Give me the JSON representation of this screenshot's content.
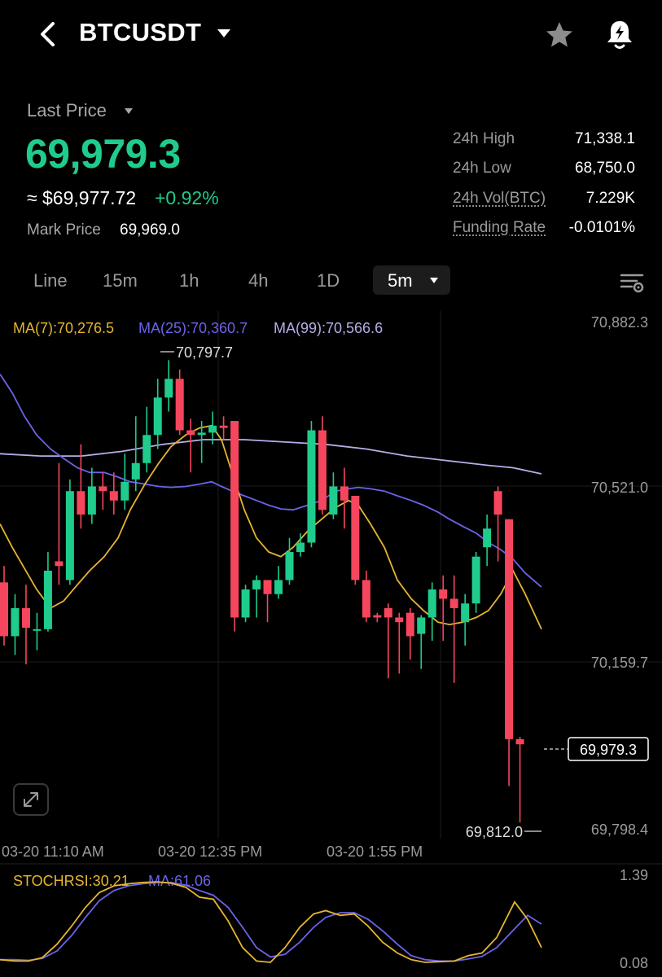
{
  "header": {
    "symbol": "BTCUSDT",
    "icons": [
      "chevron-left-icon",
      "caret-down-icon",
      "star-icon",
      "price-alert-bell-icon"
    ]
  },
  "price": {
    "label": "Last Price",
    "last": "69,979.3",
    "approx": "≈ $69,977.72",
    "change": "+0.92%",
    "mark_label": "Mark Price",
    "mark_value": "69,969.0",
    "colors": {
      "up": "#1fcc8c",
      "down": "#f6465d"
    }
  },
  "stats": [
    {
      "label": "24h High",
      "value": "71,338.1"
    },
    {
      "label": "24h Low",
      "value": "68,750.0"
    },
    {
      "label": "24h Vol(BTC)",
      "value": "7.229K"
    },
    {
      "label": "Funding Rate",
      "value": "-0.0101%"
    }
  ],
  "timeframes": {
    "tabs": [
      "Line",
      "15m",
      "1h",
      "4h",
      "1D"
    ],
    "selected": "5m"
  },
  "chart_data": {
    "type": "candlestick",
    "ma_labels": [
      {
        "text": "MA(7):70,276.5",
        "color": "#e6b52e"
      },
      {
        "text": "MA(25):70,360.7",
        "color": "#6b63e8"
      },
      {
        "text": "MA(99):70,566.6",
        "color": "#b5aee8"
      }
    ],
    "y_ticks": [
      "70,882.3",
      "70,521.0",
      "70,159.7",
      "69,798.4"
    ],
    "ylim": [
      69798.4,
      70882.3
    ],
    "x_ticks": [
      "03-20 11:10 AM",
      "03-20 12:35 PM",
      "03-20 1:55 PM"
    ],
    "high_annotation": "70,797.7",
    "low_annotation": "69,812.0",
    "current_price_tag": "69,979.3",
    "candles": [
      [
        70325,
        70210,
        70360,
        70190
      ],
      [
        70210,
        70270,
        70300,
        70170
      ],
      [
        70270,
        70228,
        70320,
        70150
      ],
      [
        70225,
        70225,
        70260,
        70180
      ],
      [
        70225,
        70350,
        70390,
        70220
      ],
      [
        70370,
        70360,
        70580,
        70320
      ],
      [
        70330,
        70520,
        70545,
        70320
      ],
      [
        70520,
        70470,
        70620,
        70440
      ],
      [
        70470,
        70530,
        70570,
        70450
      ],
      [
        70530,
        70520,
        70560,
        70480
      ],
      [
        70520,
        70500,
        70560,
        70470
      ],
      [
        70500,
        70540,
        70600,
        70480
      ],
      [
        70545,
        70580,
        70680,
        70520
      ],
      [
        70580,
        70640,
        70700,
        70560
      ],
      [
        70640,
        70720,
        70760,
        70610
      ],
      [
        70720,
        70760,
        70800,
        70690
      ],
      [
        70760,
        70650,
        70780,
        70640
      ],
      [
        70650,
        70640,
        70675,
        70560
      ],
      [
        70640,
        70645,
        70670,
        70580
      ],
      [
        70645,
        70660,
        70690,
        70620
      ],
      [
        70660,
        70655,
        70680,
        70630
      ],
      [
        70670,
        70250,
        70670,
        70220
      ],
      [
        70250,
        70310,
        70320,
        70240
      ],
      [
        70310,
        70330,
        70340,
        70250
      ],
      [
        70330,
        70300,
        70330,
        70240
      ],
      [
        70300,
        70330,
        70360,
        70290
      ],
      [
        70330,
        70390,
        70420,
        70320
      ],
      [
        70390,
        70410,
        70430,
        70380
      ],
      [
        70410,
        70650,
        70670,
        70400
      ],
      [
        70650,
        70480,
        70680,
        70470
      ],
      [
        70470,
        70530,
        70560,
        70460
      ],
      [
        70530,
        70500,
        70570,
        70440
      ],
      [
        70510,
        70330,
        70510,
        70320
      ],
      [
        70330,
        70250,
        70350,
        70240
      ],
      [
        70255,
        70250,
        70260,
        70240
      ],
      [
        70270,
        70250,
        70280,
        70120
      ],
      [
        70250,
        70240,
        70260,
        70130
      ],
      [
        70260,
        70210,
        70270,
        70160
      ],
      [
        70215,
        70250,
        70255,
        70140
      ],
      [
        70250,
        70310,
        70325,
        70200
      ],
      [
        70310,
        70290,
        70340,
        70200
      ],
      [
        70290,
        70270,
        70340,
        70110
      ],
      [
        70240,
        70280,
        70300,
        70190
      ],
      [
        70280,
        70380,
        70390,
        70260
      ],
      [
        70400,
        70440,
        70470,
        70360
      ],
      [
        70520,
        70470,
        70530,
        70370
      ],
      [
        70460,
        69990,
        70460,
        69890
      ],
      [
        69990,
        69979,
        69995,
        69812
      ]
    ],
    "ma7": [
      [
        0,
        70450
      ],
      [
        15,
        70400
      ],
      [
        30,
        70355
      ],
      [
        45,
        70310
      ],
      [
        62,
        70270
      ],
      [
        78,
        70285
      ],
      [
        95,
        70320
      ],
      [
        110,
        70350
      ],
      [
        128,
        70380
      ],
      [
        145,
        70420
      ],
      [
        160,
        70480
      ],
      [
        178,
        70535
      ],
      [
        195,
        70580
      ],
      [
        210,
        70615
      ],
      [
        228,
        70640
      ],
      [
        245,
        70655
      ],
      [
        260,
        70660
      ],
      [
        272,
        70630
      ],
      [
        285,
        70560
      ],
      [
        300,
        70480
      ],
      [
        315,
        70420
      ],
      [
        330,
        70390
      ],
      [
        345,
        70380
      ],
      [
        360,
        70400
      ],
      [
        378,
        70435
      ],
      [
        395,
        70460
      ],
      [
        412,
        70485
      ],
      [
        428,
        70500
      ],
      [
        440,
        70490
      ],
      [
        455,
        70450
      ],
      [
        472,
        70400
      ],
      [
        488,
        70330
      ],
      [
        505,
        70290
      ],
      [
        520,
        70265
      ],
      [
        538,
        70240
      ],
      [
        552,
        70235
      ],
      [
        568,
        70240
      ],
      [
        585,
        70250
      ],
      [
        600,
        70265
      ],
      [
        615,
        70300
      ],
      [
        630,
        70350
      ],
      [
        645,
        70300
      ],
      [
        665,
        70225
      ]
    ],
    "ma25": [
      [
        0,
        70770
      ],
      [
        15,
        70730
      ],
      [
        30,
        70680
      ],
      [
        45,
        70640
      ],
      [
        62,
        70610
      ],
      [
        78,
        70590
      ],
      [
        95,
        70570
      ],
      [
        110,
        70560
      ],
      [
        128,
        70560
      ],
      [
        145,
        70550
      ],
      [
        160,
        70540
      ],
      [
        178,
        70535
      ],
      [
        195,
        70530
      ],
      [
        210,
        70528
      ],
      [
        228,
        70530
      ],
      [
        245,
        70535
      ],
      [
        260,
        70540
      ],
      [
        272,
        70530
      ],
      [
        285,
        70520
      ],
      [
        300,
        70510
      ],
      [
        315,
        70500
      ],
      [
        330,
        70490
      ],
      [
        345,
        70482
      ],
      [
        360,
        70480
      ],
      [
        378,
        70490
      ],
      [
        395,
        70500
      ],
      [
        412,
        70520
      ],
      [
        428,
        70525
      ],
      [
        440,
        70528
      ],
      [
        455,
        70525
      ],
      [
        472,
        70520
      ],
      [
        488,
        70510
      ],
      [
        505,
        70500
      ],
      [
        520,
        70490
      ],
      [
        538,
        70475
      ],
      [
        552,
        70460
      ],
      [
        568,
        70445
      ],
      [
        585,
        70430
      ],
      [
        600,
        70410
      ],
      [
        615,
        70395
      ],
      [
        630,
        70375
      ],
      [
        645,
        70345
      ],
      [
        665,
        70315
      ]
    ],
    "ma99": [
      [
        0,
        70600
      ],
      [
        50,
        70595
      ],
      [
        100,
        70595
      ],
      [
        150,
        70605
      ],
      [
        200,
        70620
      ],
      [
        250,
        70630
      ],
      [
        300,
        70630
      ],
      [
        350,
        70625
      ],
      [
        400,
        70620
      ],
      [
        450,
        70610
      ],
      [
        500,
        70595
      ],
      [
        550,
        70585
      ],
      [
        600,
        70575
      ],
      [
        630,
        70570
      ],
      [
        665,
        70557
      ]
    ],
    "stoch": {
      "label": "STOCHRSI:30.21",
      "ma_label": "MA:61.06",
      "y_ticks": [
        "1.39",
        "0.08"
      ],
      "k": [
        [
          0,
          0.12
        ],
        [
          18,
          0.1
        ],
        [
          35,
          0.1
        ],
        [
          52,
          0.15
        ],
        [
          70,
          0.35
        ],
        [
          88,
          0.62
        ],
        [
          105,
          0.9
        ],
        [
          122,
          1.12
        ],
        [
          140,
          1.22
        ],
        [
          158,
          1.25
        ],
        [
          175,
          1.27
        ],
        [
          193,
          1.28
        ],
        [
          210,
          1.26
        ],
        [
          228,
          1.2
        ],
        [
          245,
          1.05
        ],
        [
          262,
          1.02
        ],
        [
          280,
          0.7
        ],
        [
          298,
          0.3
        ],
        [
          315,
          0.1
        ],
        [
          332,
          0.08
        ],
        [
          350,
          0.3
        ],
        [
          368,
          0.6
        ],
        [
          385,
          0.8
        ],
        [
          400,
          0.85
        ],
        [
          418,
          0.78
        ],
        [
          435,
          0.8
        ],
        [
          452,
          0.62
        ],
        [
          470,
          0.38
        ],
        [
          488,
          0.22
        ],
        [
          505,
          0.12
        ],
        [
          522,
          0.08
        ],
        [
          540,
          0.09
        ],
        [
          558,
          0.1
        ],
        [
          575,
          0.18
        ],
        [
          592,
          0.22
        ],
        [
          610,
          0.45
        ],
        [
          632,
          0.98
        ],
        [
          648,
          0.72
        ],
        [
          665,
          0.3
        ]
      ],
      "d": [
        [
          0,
          0.12
        ],
        [
          18,
          0.12
        ],
        [
          35,
          0.11
        ],
        [
          52,
          0.14
        ],
        [
          70,
          0.25
        ],
        [
          88,
          0.48
        ],
        [
          105,
          0.75
        ],
        [
          122,
          1.0
        ],
        [
          140,
          1.15
        ],
        [
          158,
          1.22
        ],
        [
          175,
          1.25
        ],
        [
          193,
          1.27
        ],
        [
          210,
          1.27
        ],
        [
          228,
          1.23
        ],
        [
          245,
          1.15
        ],
        [
          262,
          1.08
        ],
        [
          280,
          0.9
        ],
        [
          298,
          0.6
        ],
        [
          315,
          0.3
        ],
        [
          332,
          0.16
        ],
        [
          350,
          0.2
        ],
        [
          368,
          0.38
        ],
        [
          385,
          0.6
        ],
        [
          400,
          0.75
        ],
        [
          418,
          0.82
        ],
        [
          435,
          0.82
        ],
        [
          452,
          0.72
        ],
        [
          470,
          0.55
        ],
        [
          488,
          0.35
        ],
        [
          505,
          0.18
        ],
        [
          522,
          0.12
        ],
        [
          540,
          0.1
        ],
        [
          558,
          0.1
        ],
        [
          575,
          0.13
        ],
        [
          592,
          0.17
        ],
        [
          610,
          0.3
        ],
        [
          632,
          0.58
        ],
        [
          648,
          0.78
        ],
        [
          665,
          0.65
        ]
      ]
    }
  }
}
